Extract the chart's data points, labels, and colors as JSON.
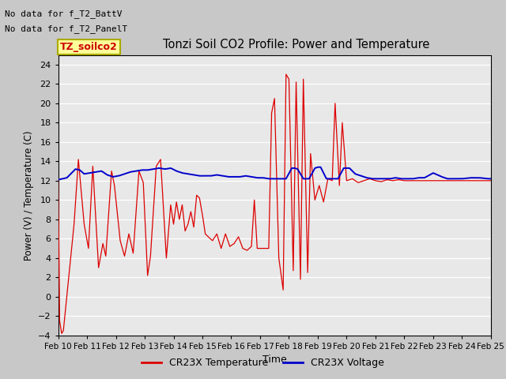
{
  "title": "Tonzi Soil CO2 Profile: Power and Temperature",
  "xlabel": "Time",
  "ylabel": "Power (V) / Temperature (C)",
  "ylim": [
    -4,
    25
  ],
  "yticks": [
    -4,
    -2,
    0,
    2,
    4,
    6,
    8,
    10,
    12,
    14,
    16,
    18,
    20,
    22,
    24
  ],
  "no_data_text1": "No data for f_T2_BattV",
  "no_data_text2": "No data for f_T2_PanelT",
  "legend_box_label": "TZ_soilco2",
  "legend_box_color": "#ffff99",
  "legend_box_border": "#aaaa00",
  "legend_text_color": "#cc0000",
  "bg_color": "#c8c8c8",
  "plot_bg_color": "#e8e8e8",
  "red_line_color": "#dd0000",
  "blue_line_color": "#0000cc",
  "x_tick_labels": [
    "Feb 10",
    "Feb 11",
    "Feb 12",
    "Feb 13",
    "Feb 14",
    "Feb 15",
    "Feb 16",
    "Feb 17",
    "Feb 18",
    "Feb 19",
    "Feb 20",
    "Feb 21",
    "Feb 22",
    "Feb 23",
    "Feb 24",
    "Feb 25"
  ],
  "x_tick_positions": [
    0,
    1,
    2,
    3,
    4,
    5,
    6,
    7,
    8,
    9,
    10,
    11,
    12,
    13,
    14,
    15
  ],
  "xlim": [
    0,
    15
  ],
  "legend_items": [
    "CR23X Temperature",
    "CR23X Voltage"
  ]
}
